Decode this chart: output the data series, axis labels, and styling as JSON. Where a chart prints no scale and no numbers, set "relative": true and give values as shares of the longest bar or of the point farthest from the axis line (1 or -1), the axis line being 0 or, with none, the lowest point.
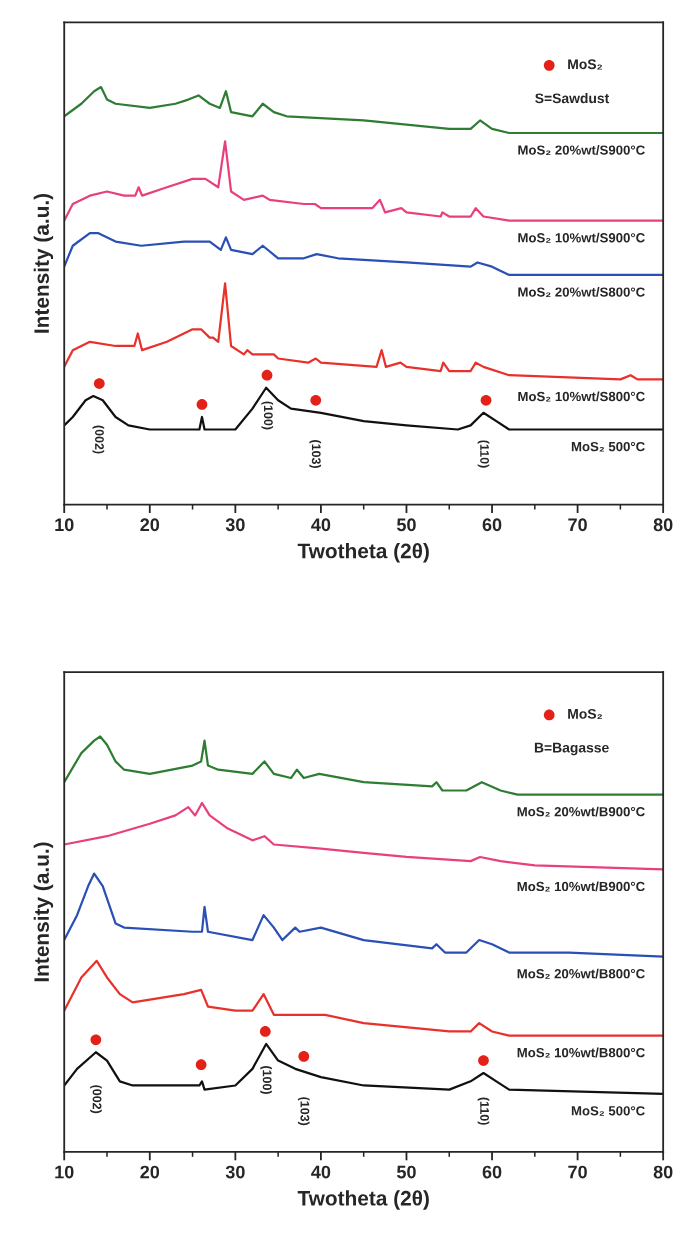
{
  "chart_data": [
    {
      "type": "line",
      "xlabel": "Twotheta (2θ)",
      "ylabel": "Intensity (a.u.)",
      "relative": true,
      "xlim": [
        10,
        80
      ],
      "xticks": [
        10,
        20,
        30,
        40,
        50,
        60,
        70,
        80
      ],
      "legend": "top right",
      "grid": false,
      "annotations": [
        "S=Sawdust",
        "(002)",
        "(100)",
        "(103)",
        "(110)"
      ],
      "series": [
        {
          "name": "MoS₂ 20%wt/S900°C",
          "color": "#2e7d32",
          "x": [
            10,
            12,
            13.5,
            14.3,
            15,
            16,
            20,
            23,
            24.5,
            25.7,
            27,
            28.2,
            28.9,
            29.5,
            32,
            33.2,
            34.5,
            36,
            45,
            55,
            57.5,
            58.6,
            60,
            62,
            65,
            80
          ],
          "values": [
            0.93,
            0.96,
            0.99,
            1.0,
            0.97,
            0.96,
            0.95,
            0.96,
            0.97,
            0.98,
            0.96,
            0.95,
            0.99,
            0.94,
            0.93,
            0.96,
            0.94,
            0.93,
            0.92,
            0.9,
            0.9,
            0.92,
            0.9,
            0.89,
            0.89,
            0.89
          ]
        },
        {
          "name": "MoS₂ 10%wt/S900°C",
          "color": "#e8407f",
          "x": [
            10,
            11,
            13,
            15,
            17,
            18.3,
            18.7,
            19.1,
            22,
            25,
            26.5,
            28,
            28.8,
            29.5,
            31,
            33.2,
            34,
            38,
            39.3,
            40,
            46,
            46.9,
            47.5,
            49.4,
            50,
            54,
            54.2,
            55,
            57.5,
            58.1,
            59,
            62,
            80
          ],
          "values": [
            0.68,
            0.72,
            0.74,
            0.75,
            0.74,
            0.74,
            0.76,
            0.74,
            0.76,
            0.78,
            0.78,
            0.76,
            0.87,
            0.75,
            0.73,
            0.74,
            0.73,
            0.72,
            0.72,
            0.71,
            0.71,
            0.73,
            0.7,
            0.71,
            0.7,
            0.69,
            0.7,
            0.69,
            0.69,
            0.71,
            0.69,
            0.68,
            0.68
          ]
        },
        {
          "name": "MoS₂ 20%wt/S800°C",
          "color": "#2a4fb5",
          "x": [
            10,
            11,
            13,
            14,
            16,
            19,
            24,
            27,
            28.3,
            28.9,
            29.5,
            32,
            33.2,
            35,
            38,
            39.5,
            42,
            50,
            57.5,
            58.3,
            60,
            62,
            80
          ],
          "values": [
            0.57,
            0.62,
            0.65,
            0.65,
            0.63,
            0.62,
            0.63,
            0.63,
            0.61,
            0.64,
            0.61,
            0.6,
            0.62,
            0.59,
            0.59,
            0.6,
            0.59,
            0.58,
            0.57,
            0.58,
            0.57,
            0.55,
            0.55
          ]
        },
        {
          "name": "MoS₂ 10%wt/S800°C",
          "color": "#e8312a",
          "x": [
            10,
            11,
            13,
            16,
            18.2,
            18.6,
            19.1,
            22,
            25,
            26,
            27,
            27.4,
            28,
            28.8,
            29.5,
            31,
            31.4,
            32,
            33.2,
            34,
            34.5,
            35,
            38.5,
            39.4,
            40,
            46.5,
            47.1,
            47.6,
            49.3,
            50,
            54,
            54.3,
            55,
            57.5,
            58.1,
            59,
            62,
            75,
            76.2,
            77,
            80
          ],
          "values": [
            0.33,
            0.37,
            0.39,
            0.38,
            0.38,
            0.41,
            0.37,
            0.39,
            0.42,
            0.42,
            0.4,
            0.4,
            0.39,
            0.53,
            0.38,
            0.36,
            0.37,
            0.36,
            0.36,
            0.36,
            0.36,
            0.35,
            0.34,
            0.35,
            0.34,
            0.33,
            0.37,
            0.33,
            0.34,
            0.33,
            0.32,
            0.34,
            0.32,
            0.32,
            0.34,
            0.33,
            0.31,
            0.3,
            0.31,
            0.3,
            0.3
          ]
        },
        {
          "name": "MoS₂ 500°C",
          "color": "#111111",
          "x": [
            10,
            11,
            12.5,
            13.4,
            14.5,
            16,
            17.5,
            20,
            25.8,
            26.1,
            26.4,
            30,
            32,
            33.6,
            35,
            36.5,
            40,
            45,
            50,
            56,
            57.5,
            59,
            60.5,
            62,
            70,
            80
          ],
          "values": [
            0.19,
            0.21,
            0.25,
            0.26,
            0.25,
            0.21,
            0.19,
            0.18,
            0.18,
            0.21,
            0.18,
            0.18,
            0.23,
            0.28,
            0.25,
            0.23,
            0.22,
            0.2,
            0.19,
            0.18,
            0.19,
            0.22,
            0.2,
            0.18,
            0.18,
            0.18
          ]
        },
        {
          "name": "MoS₂",
          "type": "scatter",
          "color": "#e32119",
          "marker": "circle",
          "x": [
            14.1,
            26.1,
            33.7,
            39.4,
            59.3
          ],
          "values": [
            0.29,
            0.24,
            0.31,
            0.25,
            0.25
          ]
        }
      ]
    },
    {
      "type": "line",
      "xlabel": "Twotheta (2θ)",
      "ylabel": "Intensity (a.u.)",
      "relative": true,
      "xlim": [
        10,
        80
      ],
      "xticks": [
        10,
        20,
        30,
        40,
        50,
        60,
        70,
        80
      ],
      "legend": "top right",
      "grid": false,
      "annotations": [
        "B=Bagasse",
        "(002)",
        "(100)",
        "(103)",
        "(110)"
      ],
      "series": [
        {
          "name": "MoS₂ 20%wt/B900°C",
          "color": "#2e7d32",
          "x": [
            10,
            12,
            13.5,
            14.2,
            15,
            16,
            17,
            20,
            25,
            26,
            26.4,
            26.8,
            28,
            32,
            33.4,
            34.5,
            36.5,
            37.2,
            38,
            39.8,
            45,
            53,
            53.5,
            54.2,
            57,
            58.8,
            61,
            63,
            80
          ],
          "values": [
            0.89,
            0.96,
            0.99,
            1.0,
            0.98,
            0.94,
            0.92,
            0.91,
            0.93,
            0.94,
            0.99,
            0.93,
            0.92,
            0.91,
            0.94,
            0.91,
            0.9,
            0.92,
            0.9,
            0.91,
            0.89,
            0.88,
            0.89,
            0.87,
            0.87,
            0.89,
            0.87,
            0.86,
            0.86
          ]
        },
        {
          "name": "MoS₂ 10%wt/B900°C",
          "color": "#e8407f",
          "x": [
            10,
            15,
            20,
            23,
            24.5,
            25.3,
            26.1,
            27,
            29,
            32,
            33.4,
            34.5,
            40,
            45,
            50,
            57.5,
            58.6,
            61,
            65,
            80
          ],
          "values": [
            0.74,
            0.76,
            0.79,
            0.81,
            0.83,
            0.81,
            0.84,
            0.81,
            0.78,
            0.75,
            0.76,
            0.74,
            0.73,
            0.72,
            0.71,
            0.7,
            0.71,
            0.7,
            0.69,
            0.68
          ]
        },
        {
          "name": "MoS₂ 20%wt/B800°C",
          "color": "#2a4fb5",
          "x": [
            10,
            11.5,
            12.8,
            13.5,
            14.5,
            16,
            17,
            25,
            26.1,
            26.4,
            26.8,
            32,
            33.3,
            34.5,
            35.5,
            37,
            37.5,
            40,
            45,
            53,
            53.5,
            54.5,
            57,
            58.5,
            60,
            62,
            69,
            80
          ],
          "values": [
            0.51,
            0.57,
            0.64,
            0.67,
            0.64,
            0.55,
            0.54,
            0.53,
            0.53,
            0.59,
            0.53,
            0.51,
            0.57,
            0.54,
            0.51,
            0.54,
            0.53,
            0.54,
            0.51,
            0.49,
            0.5,
            0.48,
            0.48,
            0.51,
            0.5,
            0.48,
            0.48,
            0.47
          ]
        },
        {
          "name": "MoS₂ 10%wt/B800°C",
          "color": "#e8312a",
          "x": [
            10,
            12,
            13.8,
            15,
            16.5,
            18,
            24,
            26,
            26.8,
            30,
            32,
            33.3,
            34.5,
            38,
            40.5,
            45,
            55,
            57.5,
            58.5,
            60,
            62,
            80
          ],
          "values": [
            0.34,
            0.42,
            0.46,
            0.42,
            0.38,
            0.36,
            0.38,
            0.39,
            0.35,
            0.34,
            0.34,
            0.38,
            0.33,
            0.33,
            0.33,
            0.31,
            0.29,
            0.29,
            0.31,
            0.29,
            0.28,
            0.28
          ]
        },
        {
          "name": "MoS₂ 500°C",
          "color": "#111111",
          "x": [
            10,
            11.5,
            13.7,
            15,
            16.5,
            18,
            25.8,
            26.1,
            26.4,
            30,
            32,
            33.6,
            35,
            37,
            40,
            45,
            55,
            57.5,
            59,
            60.5,
            62,
            80
          ],
          "values": [
            0.16,
            0.2,
            0.24,
            0.22,
            0.17,
            0.16,
            0.16,
            0.17,
            0.15,
            0.16,
            0.2,
            0.26,
            0.22,
            0.2,
            0.18,
            0.16,
            0.15,
            0.17,
            0.19,
            0.17,
            0.15,
            0.14
          ]
        },
        {
          "name": "MoS₂",
          "type": "scatter",
          "color": "#e32119",
          "marker": "circle",
          "x": [
            13.7,
            26,
            33.5,
            38,
            59
          ],
          "values": [
            0.27,
            0.21,
            0.29,
            0.23,
            0.22
          ]
        }
      ]
    }
  ]
}
